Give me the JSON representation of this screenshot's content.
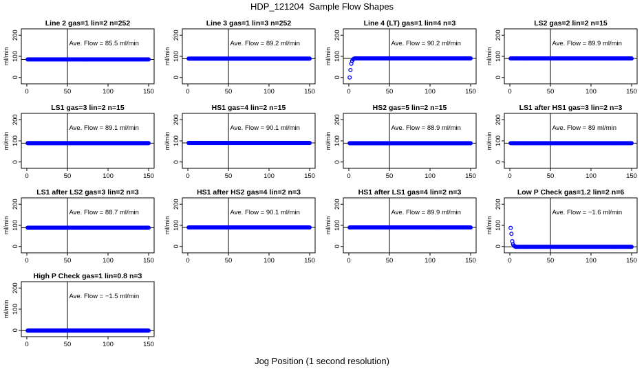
{
  "figure": {
    "title": "HDP_121204  Sample Flow Shapes",
    "xlabel": "Jog Position (1 second resolution)",
    "ylabel": "ml/min"
  },
  "style": {
    "point_color": "#0000ff",
    "line_color": "#000000"
  },
  "chart_data": [
    {
      "type": "scatter",
      "title": "Line 2 gas=1 lin=2 n=252",
      "annotation": "Ave. Flow =  85.5  ml/min",
      "xlim": [
        0,
        150
      ],
      "ylim": [
        -30,
        230
      ],
      "xticks": [
        0,
        50,
        100,
        150
      ],
      "yticks": [
        0,
        100,
        200
      ],
      "hline": 85.5,
      "vline": 50,
      "shape": "flat",
      "n_points": 150,
      "final_value": 85.5,
      "start_values": []
    },
    {
      "type": "scatter",
      "title": "Line 3 gas=1 lin=3 n=252",
      "annotation": "Ave. Flow =  89.2  ml/min",
      "xlim": [
        0,
        150
      ],
      "ylim": [
        -30,
        230
      ],
      "xticks": [
        0,
        50,
        100,
        150
      ],
      "yticks": [
        0,
        100,
        200
      ],
      "hline": 89.2,
      "vline": 50,
      "shape": "flat",
      "n_points": 150,
      "final_value": 89.2,
      "start_values": []
    },
    {
      "type": "scatter",
      "title": "Line 4 (LT) gas=1 lin=4 n=3",
      "annotation": "Ave. Flow =  90.2  ml/min",
      "xlim": [
        0,
        150
      ],
      "ylim": [
        -30,
        230
      ],
      "xticks": [
        0,
        50,
        100,
        150
      ],
      "yticks": [
        0,
        100,
        200
      ],
      "hline": 90.2,
      "vline": 50,
      "shape": "rise",
      "n_points": 150,
      "final_value": 90.2,
      "start_values": [
        0,
        35,
        65,
        78,
        85,
        88
      ]
    },
    {
      "type": "scatter",
      "title": "LS2 gas=2 lin=2 n=15",
      "annotation": "Ave. Flow =  89.9  ml/min",
      "xlim": [
        0,
        150
      ],
      "ylim": [
        -30,
        230
      ],
      "xticks": [
        0,
        50,
        100,
        150
      ],
      "yticks": [
        0,
        100,
        200
      ],
      "hline": 89.9,
      "vline": 50,
      "shape": "flat",
      "n_points": 150,
      "final_value": 89.9,
      "start_values": []
    },
    {
      "type": "scatter",
      "title": "LS1 gas=3 lin=2 n=15",
      "annotation": "Ave. Flow =  89.1  ml/min",
      "xlim": [
        0,
        150
      ],
      "ylim": [
        -30,
        230
      ],
      "xticks": [
        0,
        50,
        100,
        150
      ],
      "yticks": [
        0,
        100,
        200
      ],
      "hline": 89.1,
      "vline": 50,
      "shape": "flat",
      "n_points": 150,
      "final_value": 89.1,
      "start_values": []
    },
    {
      "type": "scatter",
      "title": "HS1 gas=4 lin=2 n=15",
      "annotation": "Ave. Flow =  90.1  ml/min",
      "xlim": [
        0,
        150
      ],
      "ylim": [
        -30,
        230
      ],
      "xticks": [
        0,
        50,
        100,
        150
      ],
      "yticks": [
        0,
        100,
        200
      ],
      "hline": 90.1,
      "vline": 50,
      "shape": "flat",
      "n_points": 150,
      "final_value": 90.1,
      "start_values": []
    },
    {
      "type": "scatter",
      "title": "HS2 gas=5 lin=2 n=15",
      "annotation": "Ave. Flow =  88.9  ml/min",
      "xlim": [
        0,
        150
      ],
      "ylim": [
        -30,
        230
      ],
      "xticks": [
        0,
        50,
        100,
        150
      ],
      "yticks": [
        0,
        100,
        200
      ],
      "hline": 88.9,
      "vline": 50,
      "shape": "flat",
      "n_points": 150,
      "final_value": 88.9,
      "start_values": []
    },
    {
      "type": "scatter",
      "title": "LS1 after HS1 gas=3 lin=2 n=3",
      "annotation": "Ave. Flow =  89  ml/min",
      "xlim": [
        0,
        150
      ],
      "ylim": [
        -30,
        230
      ],
      "xticks": [
        0,
        50,
        100,
        150
      ],
      "yticks": [
        0,
        100,
        200
      ],
      "hline": 89,
      "vline": 50,
      "shape": "flat",
      "n_points": 150,
      "final_value": 89,
      "start_values": []
    },
    {
      "type": "scatter",
      "title": "LS1 after LS2 gas=3 lin=2 n=3",
      "annotation": "Ave. Flow =  88.7  ml/min",
      "xlim": [
        0,
        150
      ],
      "ylim": [
        -30,
        230
      ],
      "xticks": [
        0,
        50,
        100,
        150
      ],
      "yticks": [
        0,
        100,
        200
      ],
      "hline": 88.7,
      "vline": 50,
      "shape": "flat",
      "n_points": 150,
      "final_value": 88.7,
      "start_values": []
    },
    {
      "type": "scatter",
      "title": "HS1 after HS2 gas=4 lin=2 n=3",
      "annotation": "Ave. Flow =  90.1  ml/min",
      "xlim": [
        0,
        150
      ],
      "ylim": [
        -30,
        230
      ],
      "xticks": [
        0,
        50,
        100,
        150
      ],
      "yticks": [
        0,
        100,
        200
      ],
      "hline": 90.1,
      "vline": 50,
      "shape": "flat",
      "n_points": 150,
      "final_value": 90.1,
      "start_values": []
    },
    {
      "type": "scatter",
      "title": "HS1 after LS1 gas=4 lin=2 n=3",
      "annotation": "Ave. Flow =  89.9  ml/min",
      "xlim": [
        0,
        150
      ],
      "ylim": [
        -30,
        230
      ],
      "xticks": [
        0,
        50,
        100,
        150
      ],
      "yticks": [
        0,
        100,
        200
      ],
      "hline": 89.9,
      "vline": 50,
      "shape": "flat",
      "n_points": 150,
      "final_value": 89.9,
      "start_values": []
    },
    {
      "type": "scatter",
      "title": "Low P Check gas=1.2 lin=2 n=6",
      "annotation": "Ave. Flow =  −1.6  ml/min",
      "xlim": [
        0,
        150
      ],
      "ylim": [
        -30,
        230
      ],
      "xticks": [
        0,
        50,
        100,
        150
      ],
      "yticks": [
        0,
        100,
        200
      ],
      "hline": -1.6,
      "vline": 50,
      "shape": "decay",
      "n_points": 150,
      "final_value": -1.6,
      "start_values": [
        88,
        60,
        25,
        10,
        4,
        1
      ]
    },
    {
      "type": "scatter",
      "title": "High P Check gas=1 lin=0.8 n=3",
      "annotation": "Ave. Flow =  −1.5  ml/min",
      "xlim": [
        0,
        150
      ],
      "ylim": [
        -30,
        230
      ],
      "xticks": [
        0,
        50,
        100,
        150
      ],
      "yticks": [
        0,
        100,
        200
      ],
      "hline": -1.5,
      "vline": 50,
      "shape": "flat",
      "n_points": 150,
      "final_value": -1.5,
      "start_values": []
    }
  ]
}
